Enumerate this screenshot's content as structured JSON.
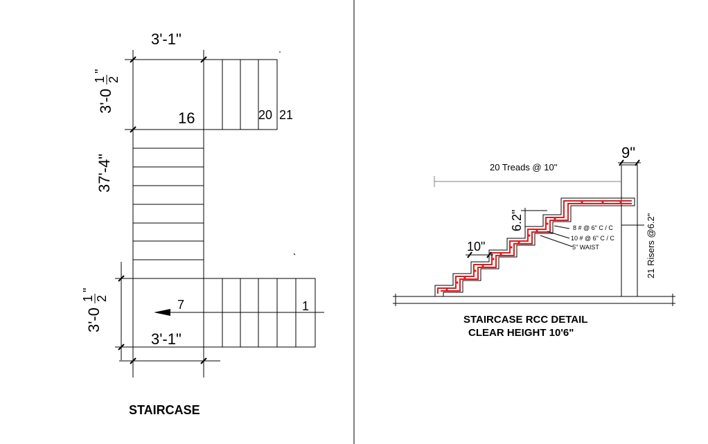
{
  "plan": {
    "width_top": "3'-1\"",
    "landing_top_len": "3'-0",
    "landing_top_frac_num": "1",
    "landing_top_frac_den": "2",
    "middle_len": "37'-4\"",
    "landing_bottom_len": "3'-0",
    "landing_bottom_frac_num": "1",
    "landing_bottom_frac_den": "2",
    "width_bottom": "3'-1\"",
    "step_16": "16",
    "step_20": "20",
    "step_21": "21",
    "step_7": "7",
    "step_1": "1",
    "title": "STAIRCASE"
  },
  "section": {
    "treads_label": "20 Treads @ 10\"",
    "post_width": "9\"",
    "riser_height": "6.2\"",
    "tread_depth": "10\"",
    "bar_8": "8 # @  6\" C / C",
    "bar_10": "10 # @  6\" C / C",
    "waist": "5\" WAIST",
    "risers_label": "21 Risers @6.2\"",
    "title_line1": "STAIRCASE RCC DETAIL",
    "title_line2": "CLEAR HEIGHT 10'6\""
  },
  "colors": {
    "line": "#000000",
    "dim": "#808080",
    "rebar": "#e41a1c"
  }
}
